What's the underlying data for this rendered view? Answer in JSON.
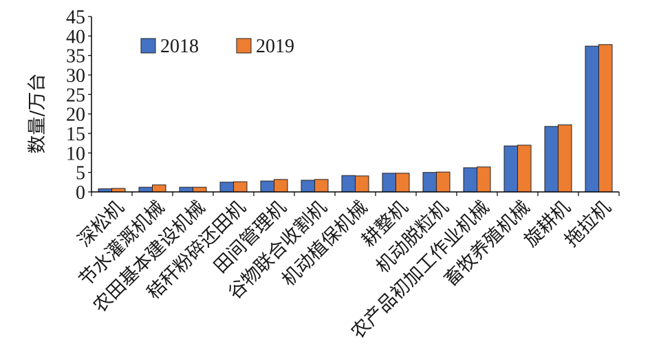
{
  "chart_data": {
    "type": "bar",
    "categories": [
      "深松机",
      "节水灌溉机械",
      "农田基本建设机械",
      "秸秆粉碎还田机",
      "田间管理机",
      "谷物联合收割机",
      "机动植保机械",
      "耕整机",
      "机动脱粒机",
      "农产品初加工作业机械",
      "畜牧养殖机械",
      "旋耕机",
      "拖拉机"
    ],
    "series": [
      {
        "name": "2018",
        "color": "#4472C4",
        "values": [
          0.8,
          1.2,
          1.2,
          2.5,
          2.8,
          3.0,
          4.2,
          4.8,
          5.0,
          6.2,
          11.8,
          16.8,
          37.4
        ]
      },
      {
        "name": "2019",
        "color": "#ED7D31",
        "values": [
          0.9,
          1.8,
          1.2,
          2.6,
          3.2,
          3.2,
          4.1,
          4.8,
          5.1,
          6.4,
          12.0,
          17.2,
          37.8
        ]
      }
    ],
    "xlabel": "",
    "ylabel": "数量/万台",
    "ylim": [
      0,
      45
    ],
    "yticks": [
      0,
      5,
      10,
      15,
      20,
      25,
      30,
      35,
      40,
      45
    ],
    "grid": false,
    "legend_placement": "top-left"
  }
}
